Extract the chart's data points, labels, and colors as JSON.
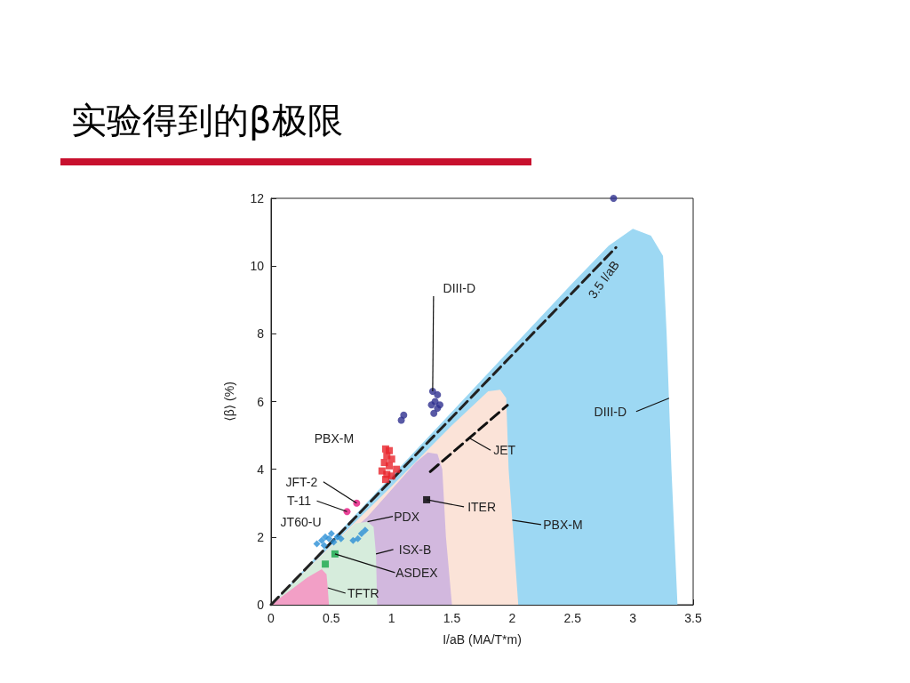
{
  "chart_data": {
    "type": "scatter",
    "title": "实验得到的β极限",
    "xlabel": "I/aB (MA/T*m)",
    "ylabel": "⟨β⟩ (%)",
    "xlim": [
      0,
      3.5
    ],
    "xticks": [
      0,
      0.5,
      1,
      1.5,
      2,
      2.5,
      3,
      3.5
    ],
    "ylim": [
      0,
      12
    ],
    "yticks": [
      0,
      2,
      4,
      6,
      8,
      10,
      12
    ],
    "series": [
      {
        "type": "area",
        "color": "#9dd8f3",
        "x": [
          0,
          0.5,
          1,
          1.5,
          2,
          2.5,
          2.8,
          3.0,
          3.15,
          3.25,
          3.28,
          3.32,
          3.37
        ],
        "values": [
          0,
          1.9,
          3.8,
          5.7,
          7.6,
          9.5,
          10.6,
          11.1,
          10.9,
          10.3,
          8,
          4,
          0
        ]
      },
      {
        "type": "area",
        "color": "#fbe3d8",
        "x": [
          0,
          1,
          1.5,
          1.8,
          1.9,
          1.95,
          1.97,
          2.05
        ],
        "values": [
          0,
          3.5,
          5.3,
          6.3,
          6.35,
          6.1,
          4,
          0
        ]
      },
      {
        "type": "area",
        "color": "#d2b8de",
        "x": [
          0,
          0.8,
          1.2,
          1.3,
          1.38,
          1.42,
          1.45,
          1.5
        ],
        "values": [
          0,
          2.6,
          4.2,
          4.5,
          4.45,
          4,
          2,
          0
        ]
      },
      {
        "type": "area",
        "color": "#d6ecdc",
        "x": [
          0,
          0.7,
          0.8,
          0.85,
          0.87,
          0.88
        ],
        "values": [
          0,
          2.4,
          2.45,
          2.3,
          1.5,
          0
        ]
      },
      {
        "type": "area",
        "color": "#f29fc6",
        "x": [
          0,
          0.3,
          0.42,
          0.46,
          0.47,
          0.48
        ],
        "values": [
          0,
          0.8,
          1.05,
          0.9,
          0.5,
          0
        ]
      },
      {
        "type": "line",
        "color": "#222222",
        "line_style": "dashed",
        "x": [
          0,
          2.86
        ],
        "values": [
          0,
          10.55
        ]
      },
      {
        "type": "line",
        "color": "#111111",
        "line_style": "dashed",
        "x": [
          1.32,
          1.96
        ],
        "values": [
          3.93,
          5.89
        ]
      },
      {
        "color": "#2e2f8f",
        "marker": "circle",
        "x": [
          2.84,
          1.34,
          1.38,
          1.36,
          1.33,
          1.38,
          1.35,
          1.4,
          1.1,
          1.08
        ],
        "values": [
          12.0,
          6.3,
          6.2,
          6.0,
          5.9,
          5.8,
          5.65,
          5.9,
          5.6,
          5.45
        ]
      },
      {
        "color": "#e8232a",
        "marker": "square",
        "x": [
          0.95,
          0.98,
          0.96,
          1.0,
          0.94,
          0.98,
          0.92,
          0.96,
          1.0,
          0.95,
          1.04
        ],
        "values": [
          4.6,
          4.55,
          4.4,
          4.3,
          4.2,
          4.1,
          3.95,
          3.85,
          3.8,
          3.7,
          4.0
        ]
      },
      {
        "color": "#e6157f",
        "marker": "circle",
        "x": [
          0.71,
          0.63
        ],
        "values": [
          3.0,
          2.75
        ]
      },
      {
        "color": "#2b8fd6",
        "marker": "diamond",
        "x": [
          0.38,
          0.42,
          0.45,
          0.48,
          0.5,
          0.52,
          0.55,
          0.58,
          0.44,
          0.72,
          0.75,
          0.78,
          0.68
        ],
        "values": [
          1.8,
          1.9,
          2.0,
          1.95,
          2.1,
          1.85,
          2.0,
          1.95,
          1.75,
          1.95,
          2.1,
          2.2,
          1.9
        ]
      },
      {
        "color": "#15a84a",
        "marker": "square",
        "x": [
          0.45,
          0.53
        ],
        "values": [
          1.2,
          1.5
        ]
      },
      {
        "color": "#000000",
        "marker": "square",
        "x": [
          1.29
        ],
        "values": [
          3.1
        ]
      }
    ],
    "annotations": [
      {
        "text": "DIII-D",
        "x": 1.34,
        "y": 6.3
      },
      {
        "text": "3.5 I/aB",
        "x": 2.86,
        "y": 10.55
      },
      {
        "text": "DIII-D",
        "x": 3.3,
        "y": 6.1
      },
      {
        "text": "PBX-M",
        "x": 0.95,
        "y": 4.6
      },
      {
        "text": "JFT-2",
        "x": 0.71,
        "y": 3.0
      },
      {
        "text": "T-11",
        "x": 0.63,
        "y": 2.75
      },
      {
        "text": "JT60-U",
        "x": 0.38,
        "y": 1.8
      },
      {
        "text": "PDX",
        "x": 0.8,
        "y": 2.45
      },
      {
        "text": "ISX-B",
        "x": 0.87,
        "y": 1.5
      },
      {
        "text": "ASDEX",
        "x": 0.53,
        "y": 1.5
      },
      {
        "text": "TFTR",
        "x": 0.47,
        "y": 0.5
      },
      {
        "text": "JET",
        "x": 1.64,
        "y": 4.93
      },
      {
        "text": "ITER",
        "x": 1.29,
        "y": 3.1
      },
      {
        "text": "PBX-M",
        "x": 2.0,
        "y": 2.5
      }
    ]
  }
}
